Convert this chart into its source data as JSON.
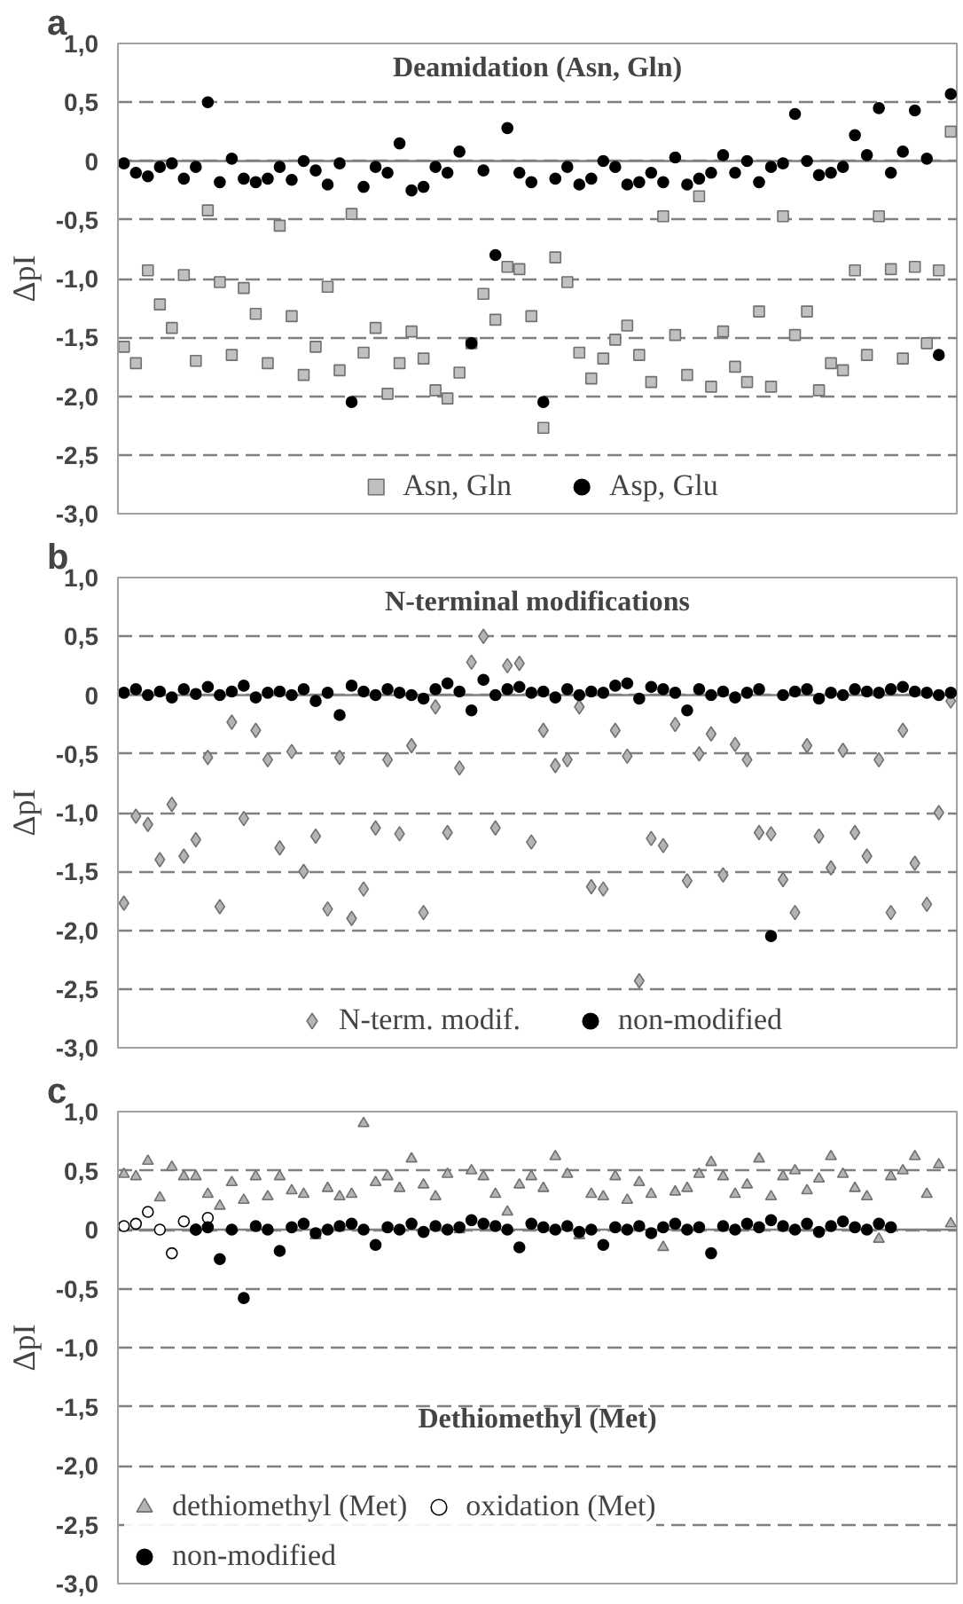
{
  "chart_data": [
    {
      "type": "scatter",
      "title": "Deamidation (Asn, Gln)",
      "ylabel": "ΔpI",
      "annotations": [
        "a"
      ],
      "categories": [
        null,
        null,
        null,
        null,
        null,
        null,
        null,
        null,
        null,
        null,
        null,
        null,
        null,
        null,
        null,
        null,
        null,
        null,
        null,
        null,
        null,
        null,
        null,
        null,
        null,
        null,
        null,
        null,
        null,
        null,
        null,
        null,
        null,
        null,
        null,
        null,
        null,
        null,
        null,
        null,
        null,
        null,
        null,
        null,
        null,
        null,
        null,
        null,
        null,
        null,
        null,
        null,
        null,
        null,
        null,
        null,
        null,
        null,
        null,
        null,
        null,
        null,
        null,
        null,
        null,
        null,
        null,
        null,
        null,
        null
      ],
      "ylim": [
        -3,
        1
      ],
      "yticks": [
        {
          "value": 1,
          "label": "1,0"
        },
        {
          "value": 0.5,
          "label": "0,5"
        },
        0,
        {
          "value": -0.5,
          "label": "-0,5"
        },
        {
          "value": -1,
          "label": "-1,0"
        },
        {
          "value": -1.5,
          "label": "-1,5"
        },
        {
          "value": -2,
          "label": "-2,0"
        },
        {
          "value": -2.5,
          "label": "-2,5"
        },
        {
          "value": -3,
          "label": "-3,0"
        }
      ],
      "grid": "y",
      "legend": "bottom",
      "tick_labels": "y",
      "ref_lines": [
        {
          "axis": "y",
          "value": 0,
          "label": null,
          "color": "#808080",
          "line_style": "solid"
        }
      ],
      "series": [
        {
          "name": "Asn, Gln",
          "color": "#c0c0c0",
          "marker": "square",
          "values": [
            -1.58,
            -1.72,
            -0.93,
            -1.22,
            -1.42,
            -0.97,
            -1.7,
            -0.42,
            -1.03,
            -1.65,
            -1.08,
            -1.3,
            -1.72,
            -0.55,
            -1.32,
            -1.82,
            -1.58,
            -1.07,
            -1.78,
            -0.45,
            -1.63,
            -1.42,
            -1.98,
            -1.72,
            -1.45,
            -1.68,
            -1.95,
            -2.02,
            -1.8,
            -1.55,
            -1.13,
            -1.35,
            -0.9,
            -0.92,
            -1.32,
            -2.27,
            -0.82,
            -1.03,
            -1.63,
            -1.85,
            -1.68,
            -1.52,
            -1.4,
            -1.65,
            -1.88,
            -0.47,
            -1.48,
            -1.82,
            -0.3,
            -1.92,
            -1.45,
            -1.75,
            -1.88,
            -1.28,
            -1.92,
            -0.47,
            -1.48,
            -1.28,
            -1.95,
            -1.72,
            -1.78,
            -0.93,
            -1.65,
            -0.47,
            -0.92,
            -1.68,
            -0.9,
            -1.55,
            -0.93,
            0.25
          ]
        },
        {
          "name": "Asp, Glu",
          "color": "#000000",
          "marker": "circle",
          "values": [
            -0.02,
            -0.1,
            -0.13,
            -0.05,
            -0.02,
            -0.15,
            -0.05,
            0.5,
            -0.18,
            0.02,
            -0.15,
            -0.18,
            -0.15,
            -0.05,
            -0.16,
            0.0,
            -0.08,
            -0.2,
            -0.02,
            -2.05,
            -0.22,
            -0.05,
            -0.1,
            0.15,
            -0.25,
            -0.22,
            -0.05,
            -0.1,
            0.08,
            -1.55,
            -0.08,
            -0.8,
            0.28,
            -0.1,
            -0.18,
            -2.05,
            -0.15,
            -0.05,
            -0.2,
            -0.15,
            0.0,
            -0.05,
            -0.2,
            -0.18,
            -0.1,
            -0.18,
            0.03,
            -0.2,
            -0.15,
            -0.1,
            0.05,
            -0.1,
            0.0,
            -0.18,
            -0.05,
            -0.02,
            0.4,
            0.0,
            -0.12,
            -0.1,
            -0.05,
            0.22,
            0.05,
            0.45,
            -0.1,
            0.08,
            0.43,
            0.02,
            -1.65,
            0.57
          ]
        }
      ]
    },
    {
      "type": "scatter",
      "title": "N-terminal modifications",
      "ylabel": "ΔpI",
      "annotations": [
        "b"
      ],
      "categories": [
        null,
        null,
        null,
        null,
        null,
        null,
        null,
        null,
        null,
        null,
        null,
        null,
        null,
        null,
        null,
        null,
        null,
        null,
        null,
        null,
        null,
        null,
        null,
        null,
        null,
        null,
        null,
        null,
        null,
        null,
        null,
        null,
        null,
        null,
        null,
        null,
        null,
        null,
        null,
        null,
        null,
        null,
        null,
        null,
        null,
        null,
        null,
        null,
        null,
        null,
        null,
        null,
        null,
        null,
        null,
        null,
        null,
        null,
        null,
        null,
        null,
        null,
        null,
        null,
        null,
        null,
        null,
        null,
        null,
        null
      ],
      "ylim": [
        -3,
        1
      ],
      "yticks": [
        {
          "value": 1,
          "label": "1,0"
        },
        {
          "value": 0.5,
          "label": "0,5"
        },
        0,
        {
          "value": -0.5,
          "label": "-0,5"
        },
        {
          "value": -1,
          "label": "-1,0"
        },
        {
          "value": -1.5,
          "label": "-1,5"
        },
        {
          "value": -2,
          "label": "-2,0"
        },
        {
          "value": -2.5,
          "label": "-2,5"
        },
        {
          "value": -3,
          "label": "-3,0"
        }
      ],
      "grid": "y",
      "legend": "bottom",
      "tick_labels": "y",
      "ref_lines": [
        {
          "axis": "y",
          "value": 0,
          "label": null,
          "color": "#808080",
          "line_style": "solid"
        }
      ],
      "series": [
        {
          "name": "N-term. modif.",
          "color": "#b4b4b4",
          "marker": "diamond",
          "values": [
            -1.77,
            -1.03,
            -1.1,
            -1.4,
            -0.93,
            -1.37,
            -1.23,
            -0.53,
            -1.8,
            -0.23,
            -1.05,
            -0.3,
            -0.55,
            -1.3,
            -0.48,
            -1.5,
            -1.2,
            -1.82,
            -0.53,
            -1.9,
            -1.65,
            -1.13,
            -0.55,
            -1.18,
            -0.43,
            -1.85,
            -0.1,
            -1.17,
            -0.62,
            0.28,
            0.5,
            -1.13,
            0.25,
            0.27,
            -1.25,
            -0.3,
            -0.6,
            -0.55,
            -0.1,
            -1.63,
            -1.65,
            -0.3,
            -0.52,
            -2.43,
            -1.22,
            -1.28,
            -0.25,
            -1.58,
            -0.5,
            -0.33,
            -1.53,
            -0.42,
            -0.55,
            -1.17,
            -1.18,
            -1.57,
            -1.85,
            -0.43,
            -1.2,
            -1.47,
            -0.47,
            -1.17,
            -1.37,
            -0.55,
            -1.85,
            -0.3,
            -1.43,
            -1.78,
            -1.0,
            -0.05
          ]
        },
        {
          "name": "non-modified",
          "color": "#000000",
          "marker": "circle",
          "values": [
            0.02,
            0.05,
            0.0,
            0.03,
            -0.02,
            0.05,
            0.01,
            0.07,
            0.0,
            0.03,
            0.08,
            -0.02,
            0.02,
            0.03,
            0.0,
            0.05,
            -0.05,
            0.02,
            -0.17,
            0.08,
            0.03,
            0.0,
            0.05,
            0.02,
            0.0,
            -0.03,
            0.05,
            0.1,
            0.03,
            -0.13,
            0.13,
            0.0,
            0.05,
            0.07,
            0.02,
            0.03,
            -0.02,
            0.05,
            0.0,
            0.03,
            0.02,
            0.08,
            0.1,
            -0.03,
            0.07,
            0.05,
            0.02,
            -0.13,
            0.05,
            0.0,
            0.03,
            -0.02,
            0.02,
            0.05,
            -2.05,
            0.0,
            0.03,
            0.05,
            -0.03,
            0.02,
            0.0,
            0.05,
            0.03,
            0.02,
            0.05,
            0.07,
            0.03,
            0.02,
            0.0,
            0.02
          ]
        }
      ]
    },
    {
      "type": "scatter",
      "title": "Dethiomethyl (Met)",
      "ylabel": "ΔpI",
      "annotations": [
        "c"
      ],
      "categories": [
        null,
        null,
        null,
        null,
        null,
        null,
        null,
        null,
        null,
        null,
        null,
        null,
        null,
        null,
        null,
        null,
        null,
        null,
        null,
        null,
        null,
        null,
        null,
        null,
        null,
        null,
        null,
        null,
        null,
        null,
        null,
        null,
        null,
        null,
        null,
        null,
        null,
        null,
        null,
        null,
        null,
        null,
        null,
        null,
        null,
        null,
        null,
        null,
        null,
        null,
        null,
        null,
        null,
        null,
        null,
        null,
        null,
        null,
        null,
        null,
        null,
        null,
        null,
        null,
        null,
        null,
        null,
        null,
        null,
        null
      ],
      "ylim": [
        -3,
        1
      ],
      "yticks": [
        {
          "value": 1,
          "label": "1,0"
        },
        {
          "value": 0.5,
          "label": "0,5"
        },
        0,
        {
          "value": -0.5,
          "label": "-0,5"
        },
        {
          "value": -1,
          "label": "-1,0"
        },
        {
          "value": -1.5,
          "label": "-1,5"
        },
        {
          "value": -2,
          "label": "-2,0"
        },
        {
          "value": -2.5,
          "label": "-2,5"
        },
        {
          "value": -3,
          "label": "-3,0"
        }
      ],
      "grid": "y",
      "legend": "bottom",
      "tick_labels": "y",
      "ref_lines": [
        {
          "axis": "y",
          "value": 0,
          "label": null,
          "color": "#808080",
          "line_style": "solid"
        }
      ],
      "series": [
        {
          "name": "dethiomethyl (Met)",
          "color": "#b4b4b4",
          "marker": "triangle",
          "values": [
            0.47,
            0.45,
            0.58,
            0.27,
            0.53,
            0.45,
            0.45,
            0.3,
            0.2,
            0.4,
            0.25,
            0.45,
            0.28,
            0.45,
            0.33,
            0.3,
            -0.05,
            0.35,
            0.28,
            0.3,
            0.9,
            0.4,
            0.45,
            0.35,
            0.6,
            0.38,
            0.28,
            0.47,
            0.0,
            0.5,
            0.45,
            0.3,
            0.15,
            0.38,
            0.45,
            0.35,
            0.62,
            0.47,
            -0.05,
            0.3,
            0.28,
            0.45,
            0.25,
            0.4,
            0.3,
            -0.15,
            0.32,
            0.35,
            0.47,
            0.57,
            0.45,
            0.3,
            0.38,
            0.6,
            0.28,
            0.45,
            0.5,
            0.33,
            0.43,
            0.62,
            0.47,
            0.35,
            0.28,
            -0.08,
            0.45,
            0.5,
            0.62,
            0.3,
            0.55,
            0.05
          ]
        },
        {
          "name": "oxidation (Met)",
          "color": "#ffffff",
          "marker": "circle",
          "values": [
            0.03,
            0.05,
            0.15,
            0.0,
            -0.2,
            0.07,
            0.0,
            0.1,
            null,
            null,
            null,
            null,
            null,
            null,
            null,
            null,
            null,
            null,
            null,
            null,
            null,
            null,
            null,
            null,
            null,
            null,
            null,
            null,
            null,
            null,
            null,
            null,
            null,
            null,
            null,
            null,
            null,
            null,
            null,
            null,
            null,
            null,
            null,
            null,
            null,
            null,
            null,
            null,
            null,
            null,
            null,
            null,
            null,
            null,
            null,
            null,
            null,
            null,
            null,
            null,
            null,
            null,
            null,
            null,
            null,
            null,
            null,
            null,
            null,
            null
          ]
        },
        {
          "name": "non-modified",
          "color": "#000000",
          "marker": "circle",
          "values": [
            null,
            null,
            null,
            null,
            null,
            null,
            0.0,
            0.02,
            -0.25,
            0.0,
            -0.58,
            0.03,
            0.0,
            -0.18,
            0.02,
            0.05,
            -0.03,
            0.0,
            0.03,
            0.05,
            0.0,
            -0.13,
            0.02,
            0.0,
            0.05,
            -0.02,
            0.03,
            0.0,
            0.02,
            0.08,
            0.05,
            0.03,
            0.0,
            -0.15,
            0.05,
            0.02,
            0.0,
            0.03,
            -0.02,
            0.0,
            -0.13,
            0.02,
            0.0,
            0.03,
            -0.03,
            0.02,
            0.05,
            0.0,
            0.02,
            -0.2,
            0.03,
            0.0,
            0.05,
            0.02,
            0.08,
            0.03,
            0.0,
            0.05,
            -0.02,
            0.03,
            0.07,
            0.02,
            0.0,
            0.05,
            0.02,
            null,
            null,
            null,
            null,
            null
          ]
        }
      ]
    }
  ]
}
